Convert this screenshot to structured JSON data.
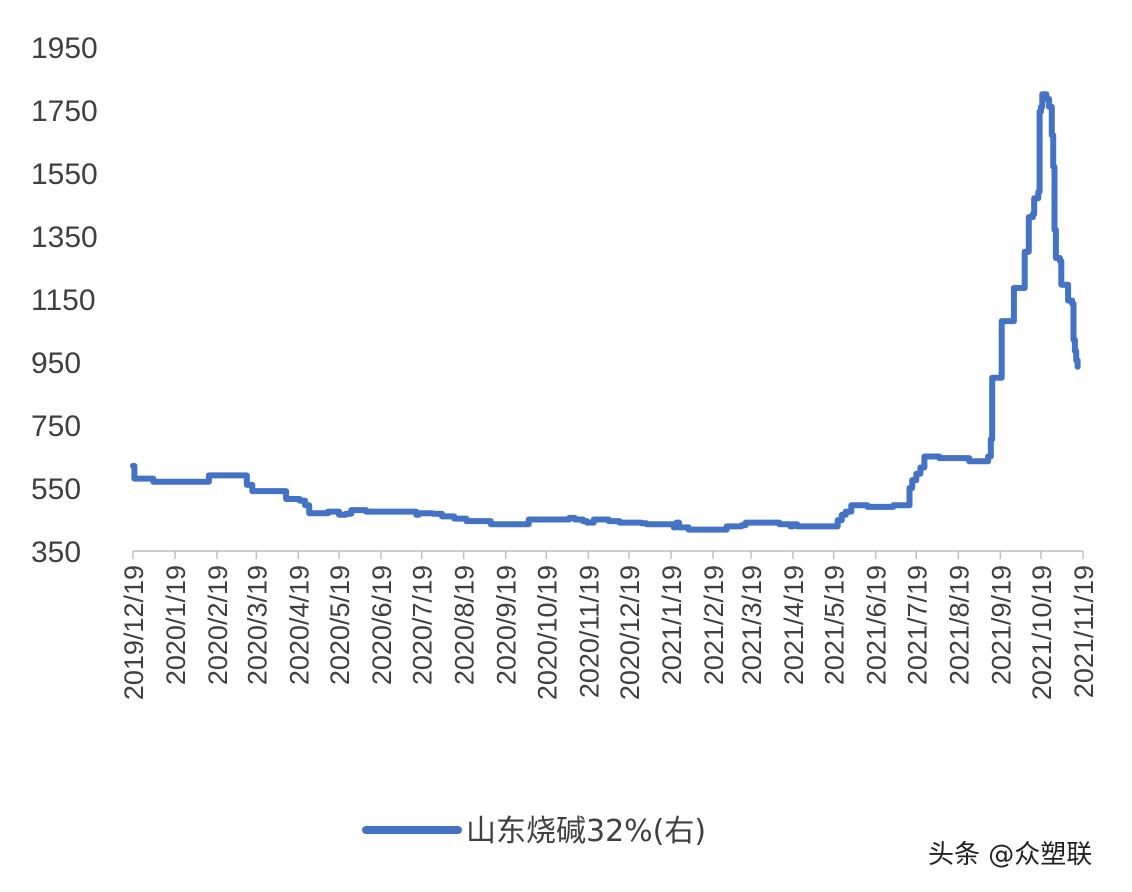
{
  "chart_data": {
    "type": "line",
    "title": "",
    "xlabel": "",
    "ylabel": "",
    "ylim": [
      350,
      1950
    ],
    "yticks": [
      350,
      550,
      750,
      950,
      1150,
      1350,
      1550,
      1750,
      1950
    ],
    "xticks": [
      "2019/12/19",
      "2020/1/19",
      "2020/2/19",
      "2020/3/19",
      "2020/4/19",
      "2020/5/19",
      "2020/6/19",
      "2020/7/19",
      "2020/8/19",
      "2020/9/19",
      "2020/10/19",
      "2020/11/19",
      "2020/12/19",
      "2021/1/19",
      "2021/2/19",
      "2021/3/19",
      "2021/4/19",
      "2021/5/19",
      "2021/6/19",
      "2021/7/19",
      "2021/8/19",
      "2021/9/19",
      "2021/10/19",
      "2021/11/19"
    ],
    "grid": false,
    "legend_position": "bottom",
    "line_color": "#4472C4",
    "series": [
      {
        "name": "山东烧碱32%(右)",
        "points": [
          [
            "2019/12/19",
            620
          ],
          [
            "2019/12/20",
            580
          ],
          [
            "2020/1/2",
            580
          ],
          [
            "2020/1/3",
            570
          ],
          [
            "2020/2/10",
            570
          ],
          [
            "2020/2/13",
            590
          ],
          [
            "2020/3/10",
            590
          ],
          [
            "2020/3/12",
            560
          ],
          [
            "2020/3/16",
            540
          ],
          [
            "2020/4/9",
            540
          ],
          [
            "2020/4/10",
            515
          ],
          [
            "2020/4/20",
            510
          ],
          [
            "2020/4/24",
            495
          ],
          [
            "2020/4/27",
            470
          ],
          [
            "2020/5/10",
            470
          ],
          [
            "2020/5/11",
            475
          ],
          [
            "2020/5/18",
            475
          ],
          [
            "2020/5/19",
            465
          ],
          [
            "2020/5/24",
            468
          ],
          [
            "2020/5/28",
            480
          ],
          [
            "2020/6/7",
            480
          ],
          [
            "2020/6/8",
            475
          ],
          [
            "2020/7/14",
            475
          ],
          [
            "2020/7/15",
            465
          ],
          [
            "2020/7/17",
            470
          ],
          [
            "2020/7/27",
            468
          ],
          [
            "2020/8/3",
            460
          ],
          [
            "2020/8/12",
            453
          ],
          [
            "2020/8/21",
            445
          ],
          [
            "2020/9/7",
            445
          ],
          [
            "2020/9/8",
            435
          ],
          [
            "2020/10/5",
            435
          ],
          [
            "2020/10/6",
            450
          ],
          [
            "2020/11/2",
            450
          ],
          [
            "2020/11/5",
            455
          ],
          [
            "2020/11/9",
            450
          ],
          [
            "2020/11/15",
            445
          ],
          [
            "2020/11/18",
            440
          ],
          [
            "2020/11/23",
            450
          ],
          [
            "2020/12/4",
            445
          ],
          [
            "2020/12/12",
            440
          ],
          [
            "2020/12/28",
            438
          ],
          [
            "2021/1/1",
            435
          ],
          [
            "2021/1/20",
            435
          ],
          [
            "2021/1/21",
            425
          ],
          [
            "2021/1/23",
            440
          ],
          [
            "2021/1/25",
            425
          ],
          [
            "2021/2/1",
            418
          ],
          [
            "2021/2/28",
            418
          ],
          [
            "2021/3/1",
            428
          ],
          [
            "2021/3/12",
            432
          ],
          [
            "2021/3/15",
            440
          ],
          [
            "2021/4/7",
            440
          ],
          [
            "2021/4/9",
            435
          ],
          [
            "2021/4/17",
            428
          ],
          [
            "2021/4/19",
            435
          ],
          [
            "2021/4/22",
            428
          ],
          [
            "2021/5/18",
            428
          ],
          [
            "2021/5/22",
            448
          ],
          [
            "2021/5/25",
            465
          ],
          [
            "2021/5/28",
            475
          ],
          [
            "2021/6/1",
            495
          ],
          [
            "2021/6/12",
            495
          ],
          [
            "2021/6/13",
            490
          ],
          [
            "2021/7/1",
            490
          ],
          [
            "2021/7/2",
            495
          ],
          [
            "2021/7/13",
            495
          ],
          [
            "2021/7/14",
            550
          ],
          [
            "2021/7/16",
            575
          ],
          [
            "2021/7/19",
            595
          ],
          [
            "2021/7/22",
            615
          ],
          [
            "2021/7/25",
            650
          ],
          [
            "2021/8/4",
            650
          ],
          [
            "2021/8/5",
            645
          ],
          [
            "2021/8/26",
            645
          ],
          [
            "2021/8/27",
            635
          ],
          [
            "2021/9/8",
            635
          ],
          [
            "2021/9/10",
            650
          ],
          [
            "2021/9/12",
            705
          ],
          [
            "2021/9/13",
            900
          ],
          [
            "2021/9/19",
            900
          ],
          [
            "2021/9/20",
            1080
          ],
          [
            "2021/9/28",
            1080
          ],
          [
            "2021/9/29",
            1185
          ],
          [
            "2021/10/6",
            1185
          ],
          [
            "2021/10/7",
            1300
          ],
          [
            "2021/10/9",
            1300
          ],
          [
            "2021/10/10",
            1410
          ],
          [
            "2021/10/13",
            1420
          ],
          [
            "2021/10/14",
            1470
          ],
          [
            "2021/10/17",
            1490
          ],
          [
            "2021/10/18",
            1745
          ],
          [
            "2021/10/19",
            1760
          ],
          [
            "2021/10/20",
            1800
          ],
          [
            "2021/10/22",
            1800
          ],
          [
            "2021/10/23",
            1785
          ],
          [
            "2021/10/25",
            1760
          ],
          [
            "2021/10/27",
            1670
          ],
          [
            "2021/10/28",
            1570
          ],
          [
            "2021/10/29",
            1370
          ],
          [
            "2021/10/30",
            1280
          ],
          [
            "2021/11/2",
            1270
          ],
          [
            "2021/11/3",
            1195
          ],
          [
            "2021/11/7",
            1195
          ],
          [
            "2021/11/8",
            1145
          ],
          [
            "2021/11/11",
            1135
          ],
          [
            "2021/11/12",
            1020
          ],
          [
            "2021/11/13",
            985
          ],
          [
            "2021/11/14",
            955
          ],
          [
            "2021/11/15",
            935
          ]
        ]
      }
    ]
  },
  "legend": {
    "label": "山东烧碱32%(右)"
  },
  "watermark": {
    "text": "头条 @众塑联"
  }
}
